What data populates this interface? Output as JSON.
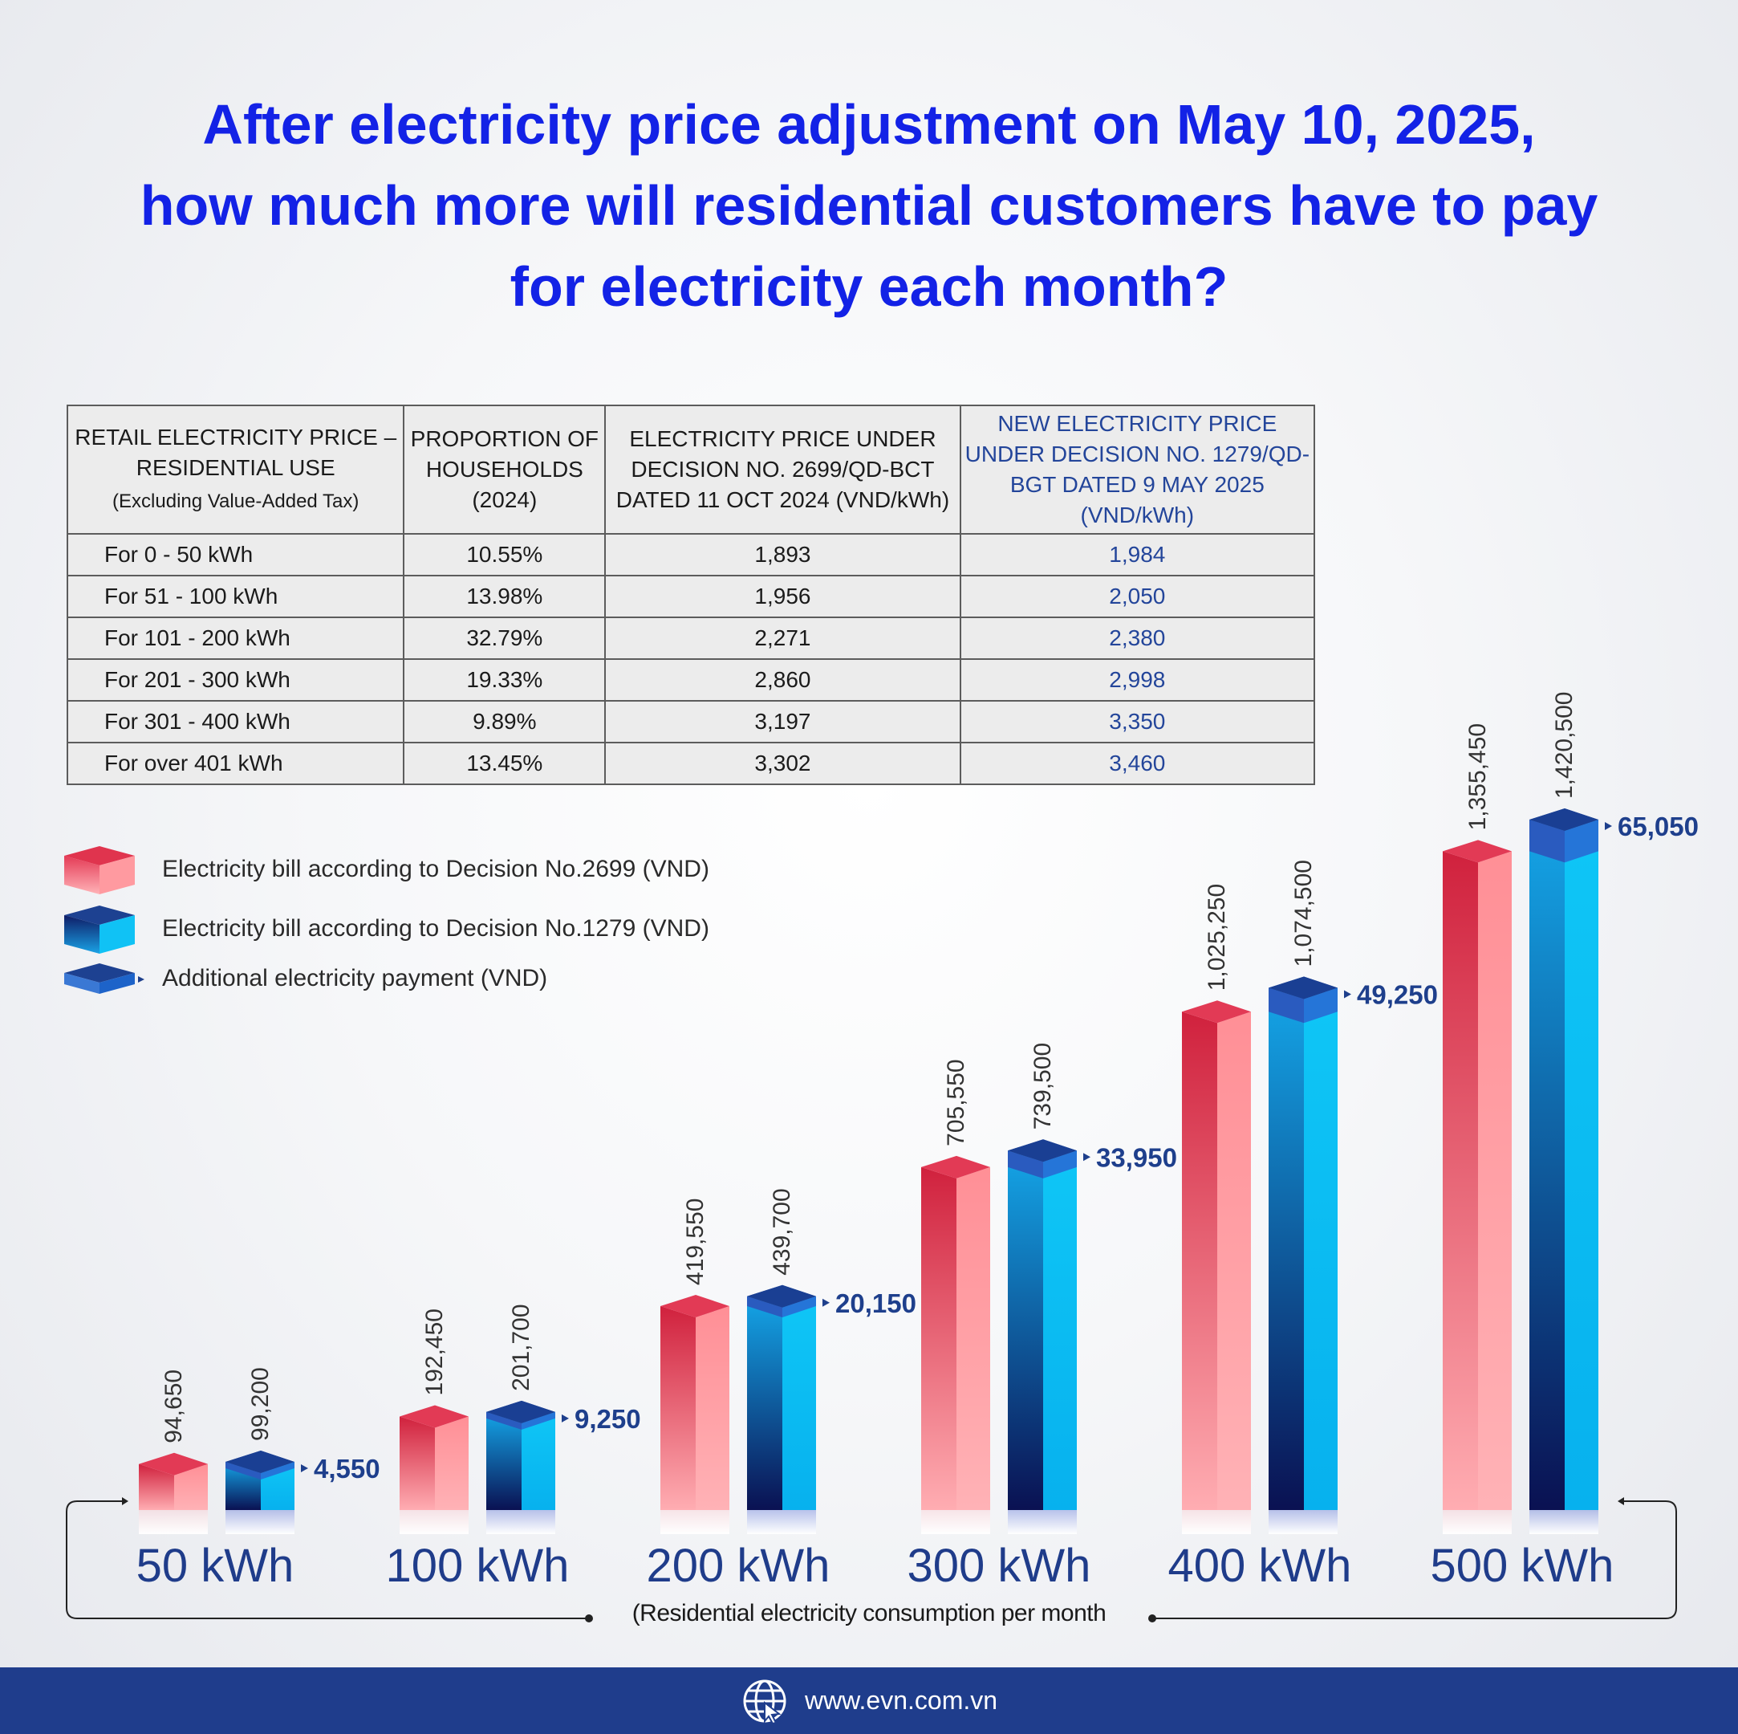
{
  "title": {
    "line1": "After electricity price adjustment on May 10, 2025,",
    "line2": "how much more will residential customers have to pay",
    "line3": "for electricity each month?"
  },
  "table": {
    "headers": [
      {
        "main": "RETAIL ELECTRICITY PRICE – RESIDENTIAL USE",
        "sub": "(Excluding Value-Added Tax)"
      },
      {
        "main": "PROPORTION OF HOUSEHOLDS (2024)",
        "sub": ""
      },
      {
        "main": "ELECTRICITY PRICE UNDER DECISION NO. 2699/QD-BCT DATED 11 OCT 2024 (VND/kWh)",
        "sub": ""
      },
      {
        "main": "NEW ELECTRICITY PRICE UNDER DECISION NO. 1279/QD-BGT DATED 9 MAY 2025 (VND/kWh)",
        "sub": ""
      }
    ],
    "rows": [
      {
        "band": "For 0 - 50 kWh",
        "share": "10.55%",
        "old": "1,893",
        "new": "1,984"
      },
      {
        "band": "For 51 - 100 kWh",
        "share": "13.98%",
        "old": "1,956",
        "new": "2,050"
      },
      {
        "band": "For 101 - 200 kWh",
        "share": "32.79%",
        "old": "2,271",
        "new": "2,380"
      },
      {
        "band": "For 201 - 300 kWh",
        "share": "19.33%",
        "old": "2,860",
        "new": "2,998"
      },
      {
        "band": "For 301 - 400 kWh",
        "share": "9.89%",
        "old": "3,197",
        "new": "3,350"
      },
      {
        "band": "For over 401 kWh",
        "share": "13.45%",
        "old": "3,302",
        "new": "3,460"
      }
    ]
  },
  "legend": {
    "items": [
      {
        "label": "Electricity bill according to Decision No.2699 (VND)",
        "icon": "red-cube-icon"
      },
      {
        "label": "Electricity bill according to Decision No.1279 (VND)",
        "icon": "blue-cube-icon"
      },
      {
        "label": "Additional electricity payment (VND)",
        "icon": "blue-slab-icon"
      }
    ]
  },
  "colors": {
    "title": "#1322e6",
    "old_bar_front": "#ff9da3",
    "old_bar_side": "#d6283f",
    "new_bar_front": "#10c2f5",
    "new_bar_side": "#0f1c66",
    "diff_label": "#1e3f8c",
    "footer": "#1f3d8c"
  },
  "chart_data": {
    "type": "bar",
    "categories": [
      "50 kWh",
      "100 kWh",
      "200 kWh",
      "300 kWh",
      "400 kWh",
      "500 kWh"
    ],
    "series": [
      {
        "name": "Electricity bill according to Decision No.2699 (VND)",
        "values": [
          94650,
          192450,
          419550,
          705550,
          1025250,
          1355450
        ],
        "labels": [
          "94,650",
          "192,450",
          "419,550",
          "705,550",
          "1,025,250",
          "1,355,450"
        ]
      },
      {
        "name": "Electricity bill according to Decision No.1279 (VND)",
        "values": [
          99200,
          201700,
          439700,
          739500,
          1074500,
          1420500
        ],
        "labels": [
          "99,200",
          "201,700",
          "439,700",
          "739,500",
          "1,074,500",
          "1,420,500"
        ]
      }
    ],
    "additional": {
      "name": "Additional electricity payment (VND)",
      "values": [
        4550,
        9250,
        20150,
        33950,
        49250,
        65050
      ],
      "labels": [
        "4,550",
        "9,250",
        "20,150",
        "33,950",
        "49,250",
        "65,050"
      ]
    },
    "xlabel": "(Residential electricity consumption per month",
    "ylabel": "",
    "grid": false,
    "legend_position": "left"
  },
  "footer": {
    "url": "www.evn.com.vn",
    "icon": "globe-icon"
  }
}
